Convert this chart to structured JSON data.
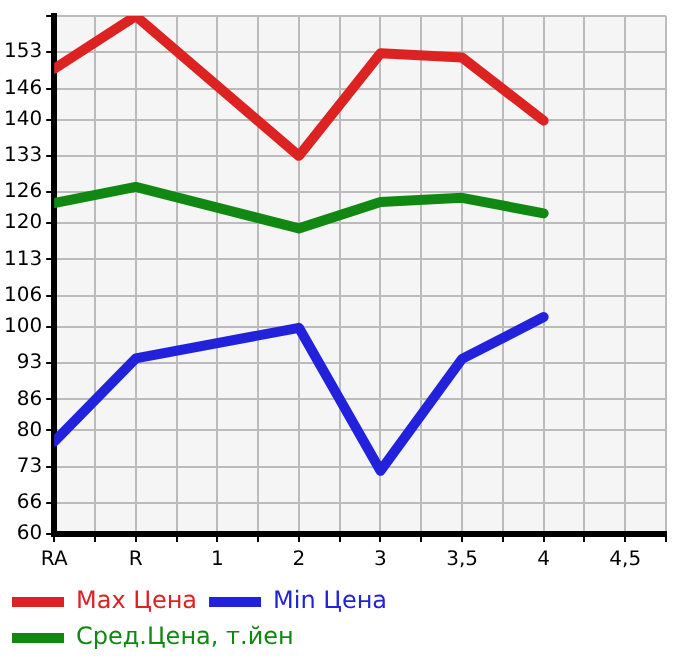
{
  "chart_data": {
    "type": "line",
    "categories": [
      "RA",
      "R",
      "1",
      "2",
      "3",
      "3,5",
      "4",
      "4,5"
    ],
    "series": [
      {
        "name": "Max Цена",
        "color": "#dd2222",
        "values": [
          149.8,
          160,
          null,
          133,
          152.8,
          152,
          139.8,
          null
        ]
      },
      {
        "name": "Min Цена",
        "color": "#2222dd",
        "values": [
          77.8,
          93.9,
          null,
          99.8,
          72.2,
          93.8,
          101.9,
          null
        ]
      },
      {
        "name": "Сред.Цена, т.йен",
        "color": "#118811",
        "values": [
          123.9,
          127,
          null,
          119,
          124.1,
          124.9,
          121.9,
          null
        ]
      }
    ],
    "ylim": [
      60,
      160
    ],
    "yticks": [
      60,
      66,
      73,
      80,
      86,
      93,
      100,
      106,
      113,
      120,
      126,
      133,
      140,
      146,
      153,
      {
        "value": 160,
        "label": null
      }
    ],
    "grid": true,
    "legend": "bottom",
    "marker": "none",
    "line_style": "solid"
  }
}
